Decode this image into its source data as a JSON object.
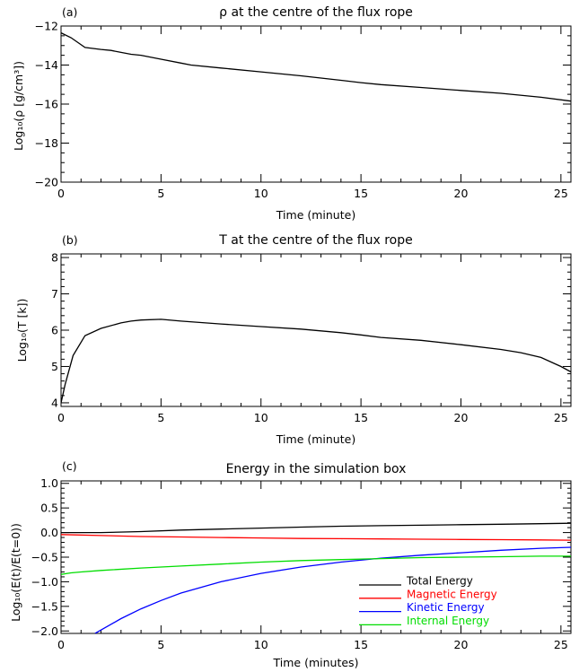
{
  "chart_data": [
    {
      "type": "line",
      "panel_label": "(a)",
      "title": "ρ at the centre of the flux rope",
      "xlabel": "Time (minute)",
      "ylabel": "Log₁₀(ρ [g/cm³])",
      "xlim": [
        0,
        25.5
      ],
      "ylim": [
        -20,
        -12
      ],
      "xticks": [
        0,
        5,
        10,
        15,
        20,
        25
      ],
      "yticks": [
        -20,
        -18,
        -16,
        -14,
        -12
      ],
      "x_tick_labels": [
        "0",
        "5",
        "10",
        "15",
        "20",
        "25"
      ],
      "y_tick_labels": [
        "−20",
        "−18",
        "−16",
        "−14",
        "−12"
      ],
      "series": [
        {
          "color": "#000000",
          "x": [
            0,
            0.5,
            1.2,
            2,
            2.5,
            3,
            3.5,
            4,
            5,
            6,
            6.5,
            8,
            10,
            12,
            14,
            15,
            16,
            18,
            20,
            22,
            24,
            25.5
          ],
          "y": [
            -12.35,
            -12.6,
            -13.1,
            -13.2,
            -13.25,
            -13.35,
            -13.45,
            -13.5,
            -13.7,
            -13.9,
            -14.0,
            -14.15,
            -14.35,
            -14.55,
            -14.78,
            -14.9,
            -15.0,
            -15.15,
            -15.3,
            -15.45,
            -15.65,
            -15.85
          ]
        }
      ]
    },
    {
      "type": "line",
      "panel_label": "(b)",
      "title": "T at the centre of the flux rope",
      "xlabel": "Time (minute)",
      "ylabel": "Log₁₀(T [k])",
      "xlim": [
        0,
        25.5
      ],
      "ylim": [
        3.9,
        8.1
      ],
      "xticks": [
        0,
        5,
        10,
        15,
        20,
        25
      ],
      "yticks": [
        4,
        5,
        6,
        7,
        8
      ],
      "x_tick_labels": [
        "0",
        "5",
        "10",
        "15",
        "20",
        "25"
      ],
      "y_tick_labels": [
        "4",
        "5",
        "6",
        "7",
        "8"
      ],
      "series": [
        {
          "color": "#000000",
          "x": [
            0,
            0.2,
            0.6,
            1.2,
            2,
            3,
            3.5,
            4,
            5,
            6,
            8,
            10,
            12,
            14,
            15,
            16,
            18,
            20,
            22,
            23,
            24,
            25,
            25.5
          ],
          "y": [
            4.0,
            4.5,
            5.3,
            5.85,
            6.05,
            6.2,
            6.25,
            6.28,
            6.3,
            6.25,
            6.17,
            6.1,
            6.03,
            5.93,
            5.87,
            5.8,
            5.72,
            5.6,
            5.47,
            5.38,
            5.25,
            5.0,
            4.85
          ]
        }
      ]
    },
    {
      "type": "line",
      "panel_label": "(c)",
      "title": "Energy in the simulation box",
      "xlabel": "Time (minutes)",
      "ylabel": "Log₁₀(E(t)/E(t=0))",
      "xlim": [
        0,
        25.5
      ],
      "ylim": [
        -2.05,
        1.05
      ],
      "xticks": [
        0,
        5,
        10,
        15,
        20,
        25
      ],
      "yticks": [
        -2.0,
        -1.5,
        -1.0,
        -0.5,
        0.0,
        0.5,
        1.0
      ],
      "x_tick_labels": [
        "0",
        "5",
        "10",
        "15",
        "20",
        "25"
      ],
      "y_tick_labels": [
        "−2.0",
        "−1.5",
        "−1.0",
        "−0.5",
        "0.0",
        "0.5",
        "1.0"
      ],
      "legend_position": "lower-right",
      "series": [
        {
          "name": "Total Energy",
          "color": "#000000",
          "x": [
            0,
            2,
            4,
            6,
            8,
            10,
            12,
            14,
            16,
            18,
            20,
            22,
            24,
            25.5
          ],
          "y": [
            0.0,
            0.0,
            0.02,
            0.05,
            0.07,
            0.09,
            0.11,
            0.13,
            0.14,
            0.15,
            0.16,
            0.17,
            0.18,
            0.19
          ]
        },
        {
          "name": "Magnetic Energy",
          "color": "#ff0000",
          "x": [
            0,
            2,
            4,
            6,
            8,
            10,
            12,
            14,
            16,
            18,
            20,
            22,
            24,
            25.5
          ],
          "y": [
            -0.04,
            -0.06,
            -0.08,
            -0.09,
            -0.1,
            -0.11,
            -0.12,
            -0.125,
            -0.13,
            -0.135,
            -0.14,
            -0.145,
            -0.15,
            -0.155
          ]
        },
        {
          "name": "Kinetic Energy",
          "color": "#0000ff",
          "x": [
            1.7,
            2,
            3,
            4,
            5,
            6,
            8,
            10,
            12,
            14,
            16,
            18,
            20,
            22,
            24,
            25.5
          ],
          "y": [
            -2.05,
            -1.98,
            -1.75,
            -1.55,
            -1.38,
            -1.23,
            -1.0,
            -0.83,
            -0.7,
            -0.6,
            -0.52,
            -0.46,
            -0.41,
            -0.36,
            -0.32,
            -0.3
          ]
        },
        {
          "name": "Internal Energy",
          "color": "#00dd00",
          "x": [
            0,
            0.5,
            1,
            2,
            4,
            6,
            8,
            10,
            12,
            14,
            16,
            18,
            20,
            22,
            24,
            25.5
          ],
          "y": [
            -0.85,
            -0.82,
            -0.8,
            -0.77,
            -0.72,
            -0.68,
            -0.64,
            -0.6,
            -0.57,
            -0.55,
            -0.53,
            -0.51,
            -0.5,
            -0.49,
            -0.48,
            -0.48
          ]
        }
      ]
    }
  ]
}
